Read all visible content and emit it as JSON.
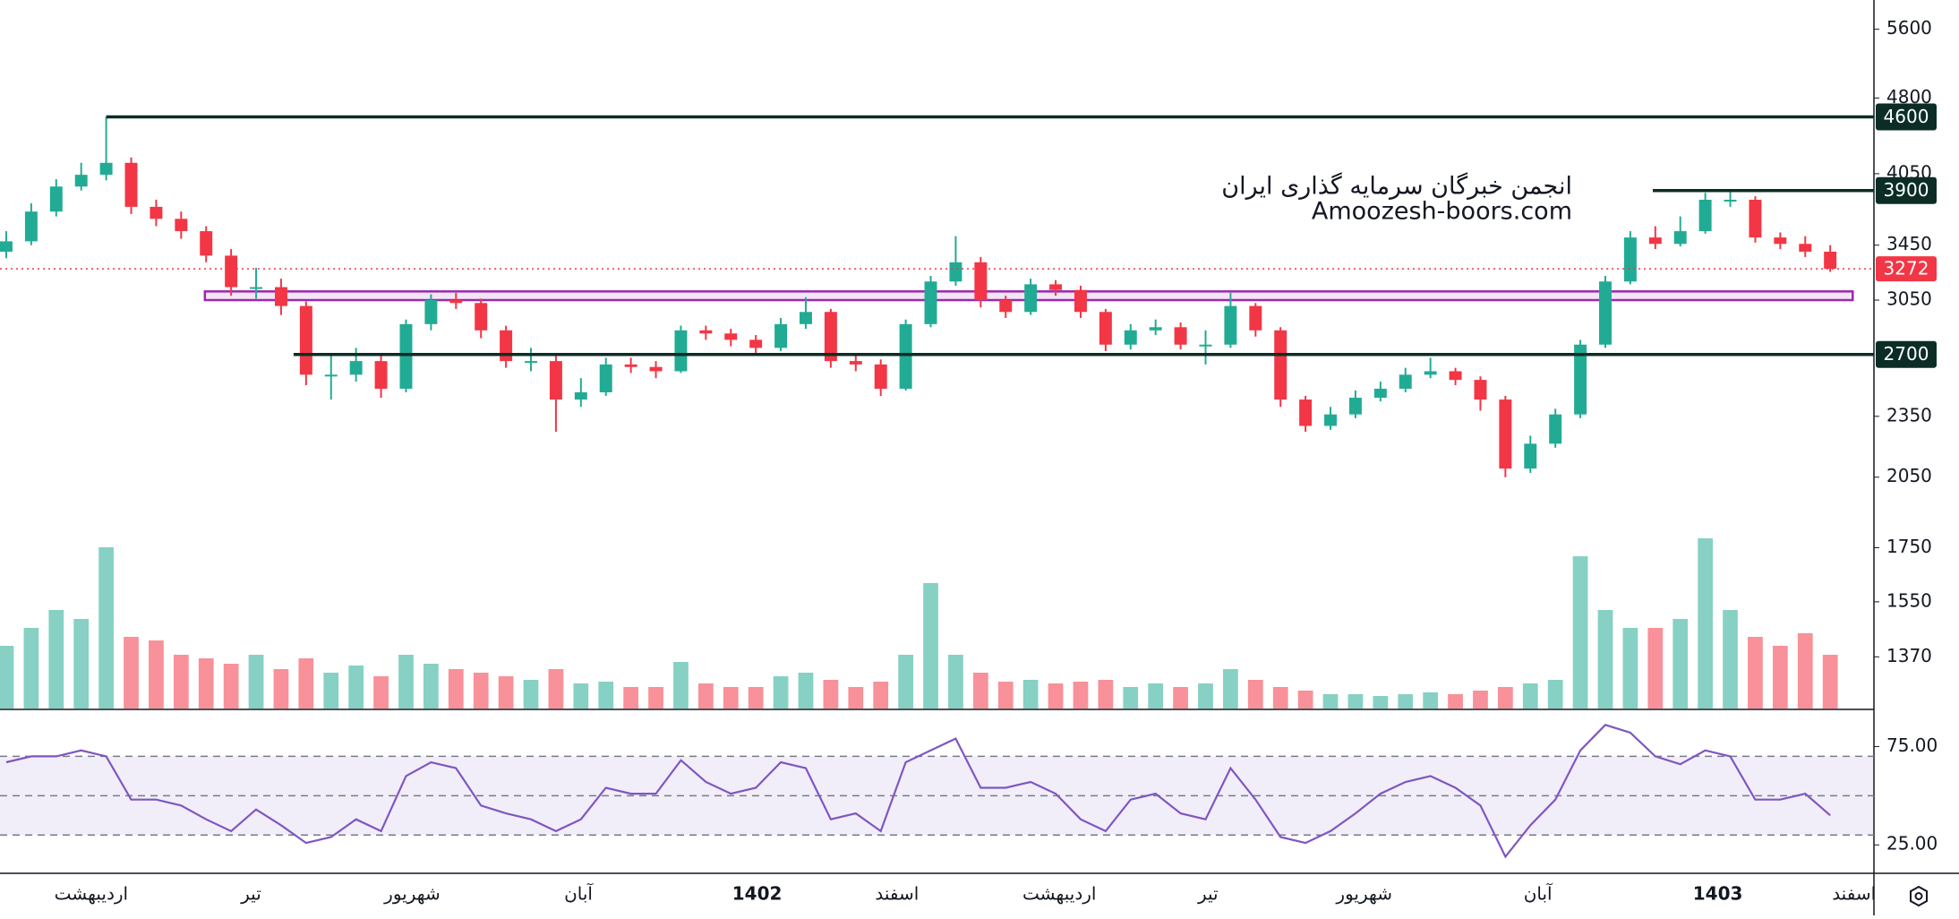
{
  "chart_data": [
    {
      "type": "candlestick",
      "up_color": "#22ab94",
      "down_color": "#f23645",
      "log_scale": true,
      "xlim": [
        -0.25,
        74.75
      ],
      "xticks": [
        {
          "value": 3.4,
          "label": "اردیبهشت"
        },
        {
          "value": 9.8,
          "label": "تیر"
        },
        {
          "value": 16.25,
          "label": "شهریور"
        },
        {
          "value": 22.9,
          "label": "آبان"
        },
        {
          "value": 30.05,
          "label": "1402"
        },
        {
          "value": 35.65,
          "label": "اسفند"
        },
        {
          "value": 42.15,
          "label": "اردیبهشت"
        },
        {
          "value": 48.1,
          "label": "تیر"
        },
        {
          "value": 54.35,
          "label": "شهریور"
        },
        {
          "value": 61.3,
          "label": "آبان"
        },
        {
          "value": 68.5,
          "label": "1403"
        },
        {
          "value": 73.95,
          "label": "اسفند"
        }
      ],
      "ylim": [
        1220,
        5980
      ],
      "yticks": [
        1370,
        1550,
        1750,
        2050,
        2350,
        3050,
        3450,
        4050,
        4800,
        5600
      ],
      "open": [
        3400,
        3480,
        3720,
        3935,
        4040,
        4150,
        3760,
        3660,
        3560,
        3370,
        3140,
        3140,
        3010,
        2580,
        2580,
        2660,
        2500,
        2890,
        3050,
        3030,
        2850,
        2660,
        2660,
        2440,
        2480,
        2640,
        2625,
        2600,
        2850,
        2830,
        2790,
        2740,
        2890,
        2970,
        2660,
        2640,
        2500,
        2890,
        3180,
        3320,
        3050,
        2970,
        3160,
        3120,
        2970,
        2760,
        2850,
        2870,
        2760,
        2760,
        3010,
        2850,
        2440,
        2300,
        2360,
        2450,
        2500,
        2580,
        2600,
        2550,
        2440,
        2090,
        2210,
        2360,
        2760,
        3180,
        3510,
        3460,
        3560,
        3820,
        3820,
        3510,
        3460,
        3400
      ],
      "high": [
        3560,
        3790,
        4000,
        4150,
        4600,
        4200,
        3820,
        3720,
        3600,
        3420,
        3280,
        3200,
        3040,
        2700,
        2740,
        2700,
        2920,
        3090,
        3100,
        3060,
        2880,
        2740,
        2700,
        2560,
        2680,
        2680,
        2660,
        2880,
        2880,
        2860,
        2820,
        2930,
        3070,
        2990,
        2700,
        2670,
        2920,
        3220,
        3520,
        3360,
        3080,
        3200,
        3190,
        3150,
        2990,
        2890,
        2920,
        2900,
        2850,
        3100,
        3030,
        2870,
        2460,
        2400,
        2490,
        2540,
        2620,
        2680,
        2620,
        2570,
        2460,
        2250,
        2390,
        2790,
        3220,
        3560,
        3600,
        3680,
        3880,
        3900,
        3850,
        3550,
        3520,
        3450
      ],
      "low": [
        3350,
        3450,
        3680,
        3900,
        3990,
        3700,
        3600,
        3500,
        3320,
        3080,
        3060,
        2950,
        2520,
        2440,
        2540,
        2450,
        2480,
        2850,
        2990,
        2800,
        2620,
        2600,
        2270,
        2400,
        2460,
        2590,
        2560,
        2590,
        2790,
        2750,
        2700,
        2720,
        2860,
        2620,
        2600,
        2460,
        2490,
        2870,
        3150,
        3000,
        2930,
        2950,
        3080,
        2930,
        2720,
        2730,
        2820,
        2730,
        2640,
        2740,
        2810,
        2400,
        2270,
        2280,
        2340,
        2430,
        2480,
        2560,
        2520,
        2380,
        2050,
        2070,
        2190,
        2340,
        2740,
        3160,
        3420,
        3440,
        3540,
        3760,
        3470,
        3420,
        3360,
        3250
      ],
      "close": [
        3480,
        3720,
        3935,
        4040,
        4150,
        3760,
        3660,
        3560,
        3370,
        3140,
        3140,
        3010,
        2580,
        2580,
        2660,
        2500,
        2890,
        3050,
        3030,
        2850,
        2660,
        2660,
        2440,
        2480,
        2640,
        2625,
        2600,
        2850,
        2830,
        2790,
        2740,
        2890,
        2970,
        2660,
        2640,
        2500,
        2890,
        3180,
        3320,
        3050,
        2970,
        3160,
        3120,
        2970,
        2760,
        2850,
        2870,
        2760,
        2760,
        3010,
        2850,
        2440,
        2300,
        2360,
        2450,
        2500,
        2580,
        2600,
        2550,
        2440,
        2090,
        2210,
        2360,
        2760,
        3180,
        3510,
        3460,
        3560,
        3820,
        3820,
        3510,
        3460,
        3400,
        3272
      ],
      "volume": [
        35,
        45,
        55,
        50,
        90,
        40,
        38,
        30,
        28,
        25,
        30,
        22,
        28,
        20,
        24,
        18,
        30,
        25,
        22,
        20,
        18,
        16,
        22,
        14,
        15,
        12,
        12,
        26,
        14,
        12,
        12,
        18,
        20,
        16,
        12,
        15,
        30,
        70,
        30,
        20,
        15,
        16,
        14,
        15,
        16,
        12,
        14,
        12,
        14,
        22,
        16,
        12,
        10,
        8,
        8,
        7,
        8,
        9,
        8,
        10,
        12,
        14,
        16,
        85,
        55,
        45,
        45,
        50,
        95,
        55,
        40,
        35,
        42,
        30
      ],
      "hlines": [
        {
          "value": 4600,
          "x": 4
        },
        {
          "value": 3900,
          "x": 65.9
        },
        {
          "value": 2700,
          "x": 11.5
        }
      ],
      "zone": {
        "ylim": [
          3050,
          3110
        ],
        "xlim": [
          7.95,
          73.9
        ],
        "color": "#9c27b0"
      },
      "line_color": "#0b2d26",
      "annotations": [
        "انجمن خبرگان سرمایه گذاری ایران",
        "Amoozesh-boors.com"
      ]
    },
    {
      "type": "line",
      "color": "#7e57c2",
      "ylim": [
        11,
        93.4
      ],
      "yticks": [
        {
          "value": 25,
          "label": "25.00"
        },
        {
          "value": 75,
          "label": "75.00"
        }
      ],
      "levels": [
        30,
        50,
        70
      ],
      "values": [
        67,
        70,
        70,
        73,
        70,
        48,
        48,
        45,
        38,
        32,
        43,
        35,
        26,
        29,
        38,
        32,
        60,
        67,
        64,
        45,
        41,
        38,
        32,
        38,
        54,
        51,
        51,
        68,
        57,
        51,
        54,
        67,
        64,
        38,
        41,
        32,
        67,
        73,
        79,
        54,
        54,
        57,
        51,
        38,
        32,
        48,
        51,
        41,
        38,
        64,
        48,
        29,
        26,
        32,
        41,
        51,
        57,
        60,
        54,
        45,
        19,
        35,
        48,
        73,
        86,
        82,
        70,
        66,
        73,
        70,
        48,
        48,
        51,
        40
      ]
    }
  ]
}
